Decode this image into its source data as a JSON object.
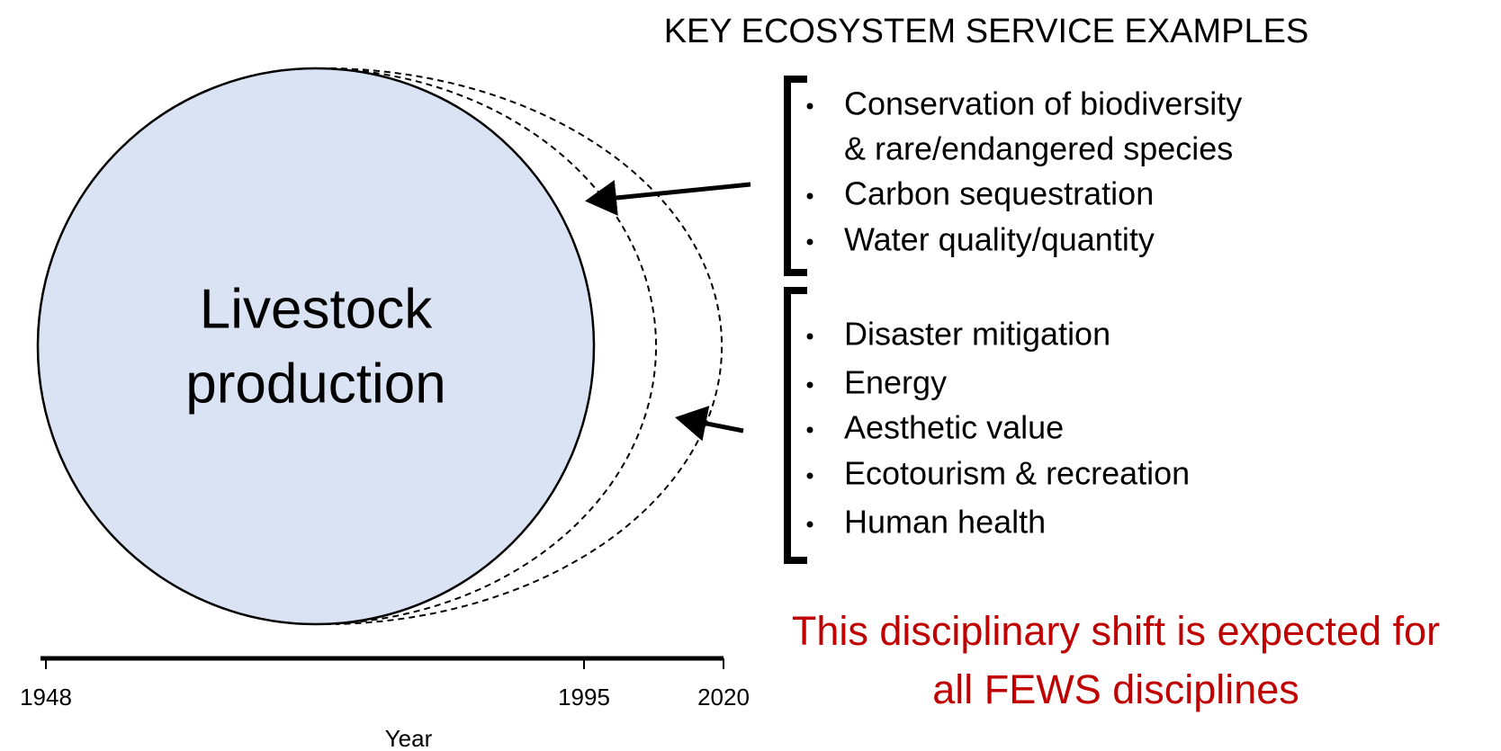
{
  "title": "KEY ECOSYSTEM SERVICE EXAMPLES",
  "circle": {
    "lines": [
      "Livestock",
      "production"
    ]
  },
  "groups": [
    {
      "items": [
        {
          "lines": [
            "Conservation of biodiversity",
            "& rare/endangered species"
          ]
        },
        {
          "lines": [
            "Carbon sequestration"
          ]
        },
        {
          "lines": [
            "Water quality/quantity"
          ]
        }
      ]
    },
    {
      "items": [
        {
          "lines": [
            "Disaster mitigation"
          ]
        },
        {
          "lines": [
            "Energy"
          ]
        },
        {
          "lines": [
            "Aesthetic value"
          ]
        },
        {
          "lines": [
            "Ecotourism & recreation"
          ]
        },
        {
          "lines": [
            "Human health"
          ]
        }
      ]
    }
  ],
  "timeline": {
    "ticks": [
      "1948",
      "1995",
      "2020"
    ],
    "label": "Year"
  },
  "note": {
    "lines": [
      "This disciplinary shift is expected for",
      "all FEWS disciplines"
    ]
  }
}
